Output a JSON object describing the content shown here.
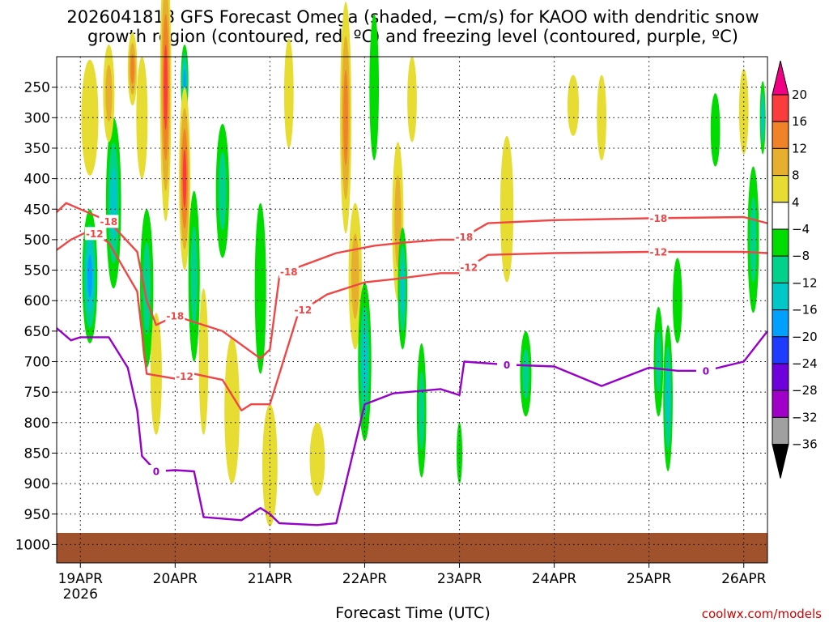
{
  "chart_data": {
    "type": "heatmap",
    "title_line1": "2026041818 GFS Forecast Omega (shaded, −cm/s) for KAOO with dendritic snow",
    "title_line2": "growth region (contoured, red, ºC) and freezing level (contoured, purple, ºC)",
    "xlabel": "Forecast Time (UTC)",
    "credit": "coolwx.com/models",
    "x_ticks": [
      "19APR",
      "20APR",
      "21APR",
      "22APR",
      "23APR",
      "24APR",
      "25APR",
      "26APR"
    ],
    "x_subtick": "2026",
    "x_range_days": [
      -0.25,
      7.25
    ],
    "y_ticks": [
      "250",
      "300",
      "350",
      "400",
      "450",
      "500",
      "550",
      "600",
      "650",
      "700",
      "750",
      "800",
      "850",
      "900",
      "950",
      "1000"
    ],
    "y_range_hpa": [
      200,
      1030
    ],
    "colorbar_labels": [
      "20",
      "16",
      "12",
      "8",
      "4",
      "−4",
      "−8",
      "−12",
      "−16",
      "−20",
      "−24",
      "−28",
      "−32",
      "−36"
    ],
    "colorbar_bins": [
      {
        "range": "<-36",
        "color": "#000000"
      },
      {
        "range": "-36..-32",
        "color": "#a0a0a0"
      },
      {
        "range": "-32..-28",
        "color": "#a000c8"
      },
      {
        "range": "-28..-24",
        "color": "#6e00dc"
      },
      {
        "range": "-24..-20",
        "color": "#1e3cff"
      },
      {
        "range": "-20..-16",
        "color": "#00a0ff"
      },
      {
        "range": "-16..-12",
        "color": "#00c8c8"
      },
      {
        "range": "-12..-8",
        "color": "#00d28c"
      },
      {
        "range": "-8..-4",
        "color": "#00dc00"
      },
      {
        "range": "-4..4",
        "color": "#ffffff"
      },
      {
        "range": "4..8",
        "color": "#e6dc32"
      },
      {
        "range": "8..12",
        "color": "#e6af2d"
      },
      {
        "range": "12..16",
        "color": "#f08228"
      },
      {
        "range": "16..20",
        "color": "#fa3c3c"
      },
      {
        "range": ">20",
        "color": "#f00082"
      }
    ],
    "contour_labels": {
      "dgz_cold": "-18",
      "dgz_warm": "-12",
      "freezing": "0"
    },
    "contours": {
      "dgz_cold_-18": {
        "color": "#f04646",
        "points": [
          [
            -0.25,
            455
          ],
          [
            -0.15,
            440
          ],
          [
            0,
            450
          ],
          [
            0.3,
            470
          ],
          [
            0.6,
            520
          ],
          [
            0.7,
            600
          ],
          [
            0.8,
            640
          ],
          [
            1.0,
            625
          ],
          [
            1.5,
            650
          ],
          [
            1.9,
            695
          ],
          [
            2.0,
            680
          ],
          [
            2.1,
            560
          ],
          [
            2.3,
            545
          ],
          [
            2.7,
            522
          ],
          [
            3.1,
            510
          ],
          [
            3.4,
            505
          ],
          [
            3.8,
            500
          ],
          [
            4.0,
            500
          ],
          [
            4.3,
            473
          ],
          [
            5.0,
            468
          ],
          [
            6.0,
            465
          ],
          [
            7.0,
            463
          ],
          [
            7.25,
            473
          ]
        ]
      },
      "dgz_warm_-12": {
        "color": "#f04646",
        "points": [
          [
            -0.25,
            517
          ],
          [
            -0.1,
            500
          ],
          [
            0.1,
            485
          ],
          [
            0.3,
            505
          ],
          [
            0.6,
            585
          ],
          [
            0.7,
            720
          ],
          [
            1.0,
            728
          ],
          [
            1.2,
            720
          ],
          [
            1.5,
            730
          ],
          [
            1.7,
            780
          ],
          [
            1.8,
            770
          ],
          [
            2.0,
            770
          ],
          [
            2.1,
            720
          ],
          [
            2.3,
            620
          ],
          [
            2.6,
            590
          ],
          [
            3.0,
            570
          ],
          [
            3.3,
            565
          ],
          [
            3.8,
            555
          ],
          [
            4.0,
            555
          ],
          [
            4.3,
            525
          ],
          [
            5.0,
            522
          ],
          [
            6.0,
            520
          ],
          [
            7.0,
            520
          ],
          [
            7.25,
            522
          ]
        ]
      },
      "freezing_0": {
        "color": "#9600c8",
        "points": [
          [
            -0.25,
            645
          ],
          [
            -0.1,
            665
          ],
          [
            0,
            660
          ],
          [
            0.3,
            660
          ],
          [
            0.5,
            710
          ],
          [
            0.6,
            780
          ],
          [
            0.65,
            855
          ],
          [
            0.8,
            880
          ],
          [
            1.0,
            878
          ],
          [
            1.2,
            880
          ],
          [
            1.3,
            955
          ],
          [
            1.7,
            960
          ],
          [
            1.9,
            940
          ],
          [
            2.0,
            950
          ],
          [
            2.1,
            965
          ],
          [
            2.5,
            968
          ],
          [
            2.7,
            965
          ],
          [
            3.0,
            770
          ],
          [
            3.3,
            752
          ],
          [
            3.8,
            745
          ],
          [
            4.0,
            755
          ],
          [
            4.05,
            700
          ],
          [
            4.5,
            705
          ],
          [
            5.0,
            708
          ],
          [
            5.5,
            740
          ],
          [
            6.0,
            710
          ],
          [
            6.3,
            715
          ],
          [
            6.6,
            715
          ],
          [
            7.0,
            700
          ],
          [
            7.25,
            650
          ]
        ]
      }
    },
    "omega_blobs": [
      [
        0.1,
        300,
        0.09,
        95,
        6
      ],
      [
        0.1,
        560,
        0.08,
        110,
        -16
      ],
      [
        0.35,
        440,
        0.08,
        140,
        -12
      ],
      [
        0.3,
        260,
        0.06,
        80,
        8
      ],
      [
        0.55,
        220,
        0.05,
        60,
        14
      ],
      [
        0.65,
        300,
        0.06,
        100,
        6
      ],
      [
        0.7,
        580,
        0.07,
        130,
        -10
      ],
      [
        0.8,
        720,
        0.06,
        100,
        6
      ],
      [
        0.9,
        250,
        0.06,
        220,
        18
      ],
      [
        1.1,
        240,
        0.04,
        60,
        -16
      ],
      [
        1.1,
        400,
        0.06,
        150,
        18
      ],
      [
        1.2,
        560,
        0.06,
        140,
        -10
      ],
      [
        1.3,
        700,
        0.05,
        120,
        6
      ],
      [
        1.5,
        420,
        0.07,
        110,
        -8
      ],
      [
        1.6,
        780,
        0.08,
        120,
        6
      ],
      [
        1.9,
        580,
        0.06,
        140,
        -6
      ],
      [
        2.0,
        870,
        0.08,
        100,
        6
      ],
      [
        2.2,
        260,
        0.05,
        90,
        6
      ],
      [
        2.5,
        860,
        0.08,
        60,
        6
      ],
      [
        2.8,
        300,
        0.06,
        190,
        12
      ],
      [
        2.9,
        560,
        0.07,
        120,
        8
      ],
      [
        3.0,
        700,
        0.07,
        130,
        -12
      ],
      [
        3.1,
        250,
        0.05,
        120,
        -6
      ],
      [
        3.35,
        470,
        0.06,
        130,
        8
      ],
      [
        3.4,
        580,
        0.05,
        100,
        -12
      ],
      [
        3.5,
        270,
        0.05,
        70,
        6
      ],
      [
        3.6,
        780,
        0.05,
        110,
        -8
      ],
      [
        4.0,
        850,
        0.03,
        50,
        -6
      ],
      [
        4.5,
        450,
        0.07,
        120,
        6
      ],
      [
        4.7,
        720,
        0.06,
        70,
        -8
      ],
      [
        5.2,
        280,
        0.06,
        50,
        6
      ],
      [
        5.5,
        300,
        0.05,
        70,
        6
      ],
      [
        6.1,
        700,
        0.05,
        90,
        -10
      ],
      [
        6.2,
        760,
        0.05,
        120,
        -14
      ],
      [
        6.3,
        600,
        0.05,
        70,
        -6
      ],
      [
        6.7,
        320,
        0.05,
        60,
        -6
      ],
      [
        7.0,
        290,
        0.05,
        70,
        6
      ],
      [
        7.1,
        500,
        0.06,
        120,
        -8
      ],
      [
        7.2,
        300,
        0.03,
        60,
        -12
      ]
    ]
  }
}
